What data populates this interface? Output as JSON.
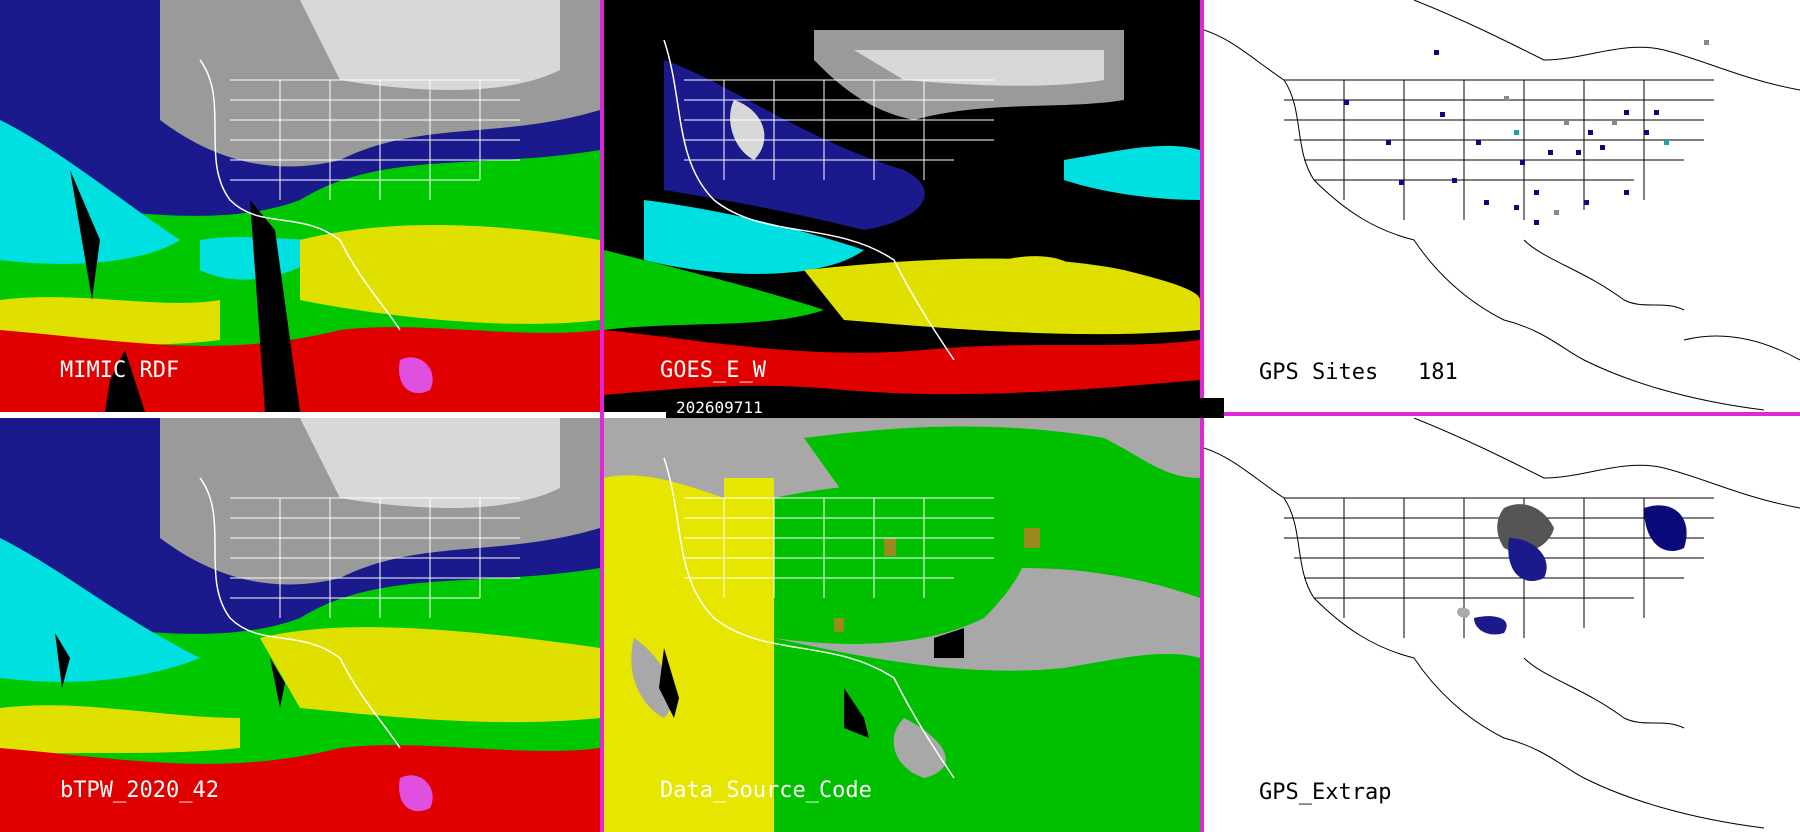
{
  "panels": [
    {
      "id": "mimic",
      "label": "MIMIC RDF",
      "style": "color"
    },
    {
      "id": "goes",
      "label": "GOES_E_W",
      "style": "color-black"
    },
    {
      "id": "gps_sites",
      "label": "GPS Sites",
      "count": "181",
      "style": "white"
    },
    {
      "id": "btpw",
      "label": "bTPW_2020_42",
      "style": "color"
    },
    {
      "id": "source",
      "label": "Data_Source_Code",
      "style": "source"
    },
    {
      "id": "gps_extrap",
      "label": "GPS_Extrap",
      "style": "white"
    }
  ],
  "timestamp": "202609711",
  "colors": {
    "divider": "#e026d8",
    "tpw_scale": [
      "#9a9a9a",
      "#d8d8d8",
      "#1a1a8c",
      "#2040d0",
      "#00e0e0",
      "#00c800",
      "#e0e000",
      "#e00000",
      "#e050e0"
    ],
    "source_yellow": "#e6e600",
    "source_green": "#00c000",
    "source_gray": "#a8a8a8",
    "source_olive": "#9a8a20",
    "gps_site_colors": [
      "#0a0a7a",
      "#20a0a0",
      "#888888"
    ]
  }
}
